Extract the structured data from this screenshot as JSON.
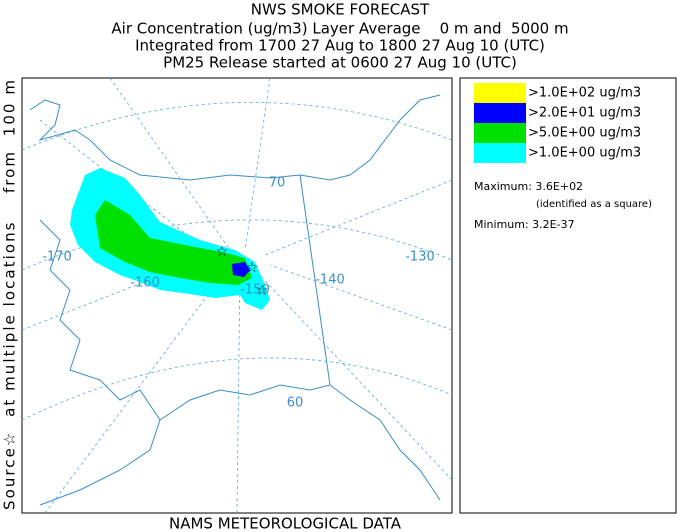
{
  "header": {
    "title": "NWS SMOKE FORECAST",
    "lines": [
      "Air Concentration (ug/m3) Layer Average    0 m and  5000 m",
      "Integrated from 1700 27 Aug to 1800 27 Aug 10 (UTC)",
      "PM25 Release started at 0600 27 Aug 10 (UTC)"
    ]
  },
  "side_label": "Source☆  at multiple locations    from  100 m",
  "map": {
    "labels": [
      "-170",
      "-160",
      "-150",
      "-140",
      "-130",
      "70",
      "60"
    ]
  },
  "legend": {
    "items": [
      {
        "label": ">1.0E+02 ug/m3",
        "color": "#ffff00"
      },
      {
        "label": ">2.0E+01 ug/m3",
        "color": "#0000ff"
      },
      {
        "label": ">5.0E+00 ug/m3",
        "color": "#00e000"
      },
      {
        "label": ">1.0E+00 ug/m3",
        "color": "#00ffff"
      }
    ],
    "maximum": "Maximum: 3.6E+02",
    "maximum_note": "(identified as a square)",
    "minimum": "Minimum: 3.2E-37"
  },
  "footer": "NAMS METEOROLOGICAL DATA"
}
